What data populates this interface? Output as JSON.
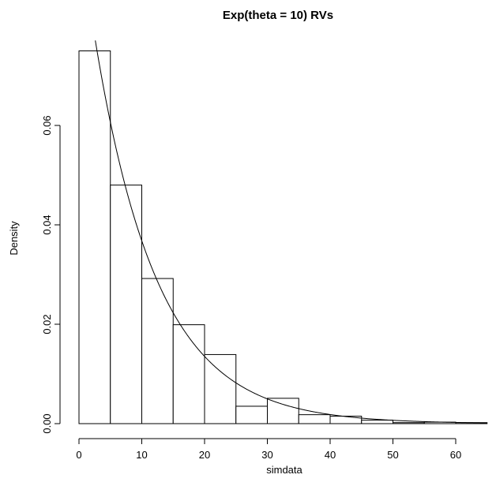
{
  "chart_data": {
    "type": "bar",
    "title": "Exp(theta = 10) RVs",
    "xlabel": "simdata",
    "ylabel": "Density",
    "bin_edges": [
      0,
      5,
      10,
      15,
      20,
      25,
      30,
      35,
      40,
      45,
      50,
      55,
      60,
      65
    ],
    "values": [
      0.075,
      0.048,
      0.0292,
      0.0199,
      0.0139,
      0.0035,
      0.0051,
      0.0018,
      0.0015,
      0.0007,
      0.0002,
      0.0003,
      0.0002
    ],
    "xlim": [
      0,
      65
    ],
    "ylim": [
      0,
      0.078
    ],
    "xticks": [
      "0",
      "10",
      "20",
      "30",
      "40",
      "50",
      "60"
    ],
    "yticks": [
      "0.00",
      "0.02",
      "0.04",
      "0.06"
    ],
    "overlay_curve": {
      "type": "line",
      "function": "exponential density",
      "theta": 10
    }
  }
}
